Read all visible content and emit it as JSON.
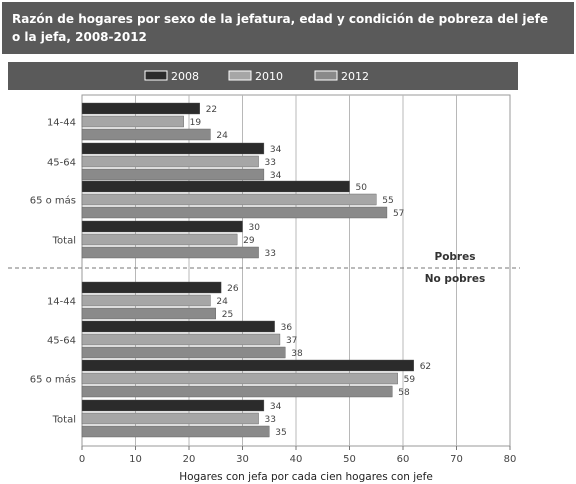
{
  "title": {
    "line1": "Razón de hogares por sexo de la jefatura, edad y condición de pobreza del jefe",
    "line2": "o la jefa, 2008-2012"
  },
  "chart_data": {
    "type": "bar",
    "orientation": "horizontal",
    "title": "Razón de hogares por sexo de la jefatura, edad y condición de pobreza del jefe o la jefa, 2008-2012",
    "xlabel": "Hogares con jefa por cada cien hogares con jefe",
    "xlim": [
      0,
      80
    ],
    "xticks": [
      0,
      10,
      20,
      30,
      40,
      50,
      60,
      70,
      80
    ],
    "grid": true,
    "legend_position": "top",
    "groups": [
      {
        "name": "Pobres",
        "categories": [
          "14-44",
          "45-64",
          "65 o más",
          "Total"
        ],
        "series": [
          {
            "name": "2008",
            "values": [
              22,
              34,
              50,
              30
            ]
          },
          {
            "name": "2010",
            "values": [
              19,
              33,
              55,
              29
            ]
          },
          {
            "name": "2012",
            "values": [
              24,
              34,
              57,
              33
            ]
          }
        ]
      },
      {
        "name": "No pobres",
        "categories": [
          "14-44",
          "45-64",
          "65 o más",
          "Total"
        ],
        "series": [
          {
            "name": "2008",
            "values": [
              26,
              36,
              62,
              34
            ]
          },
          {
            "name": "2010",
            "values": [
              24,
              37,
              59,
              33
            ]
          },
          {
            "name": "2012",
            "values": [
              25,
              38,
              58,
              35
            ]
          }
        ]
      }
    ],
    "colors": {
      "2008": "#2b2b2b",
      "2010": "#a6a6a6",
      "2012": "#8a8a8a"
    }
  }
}
